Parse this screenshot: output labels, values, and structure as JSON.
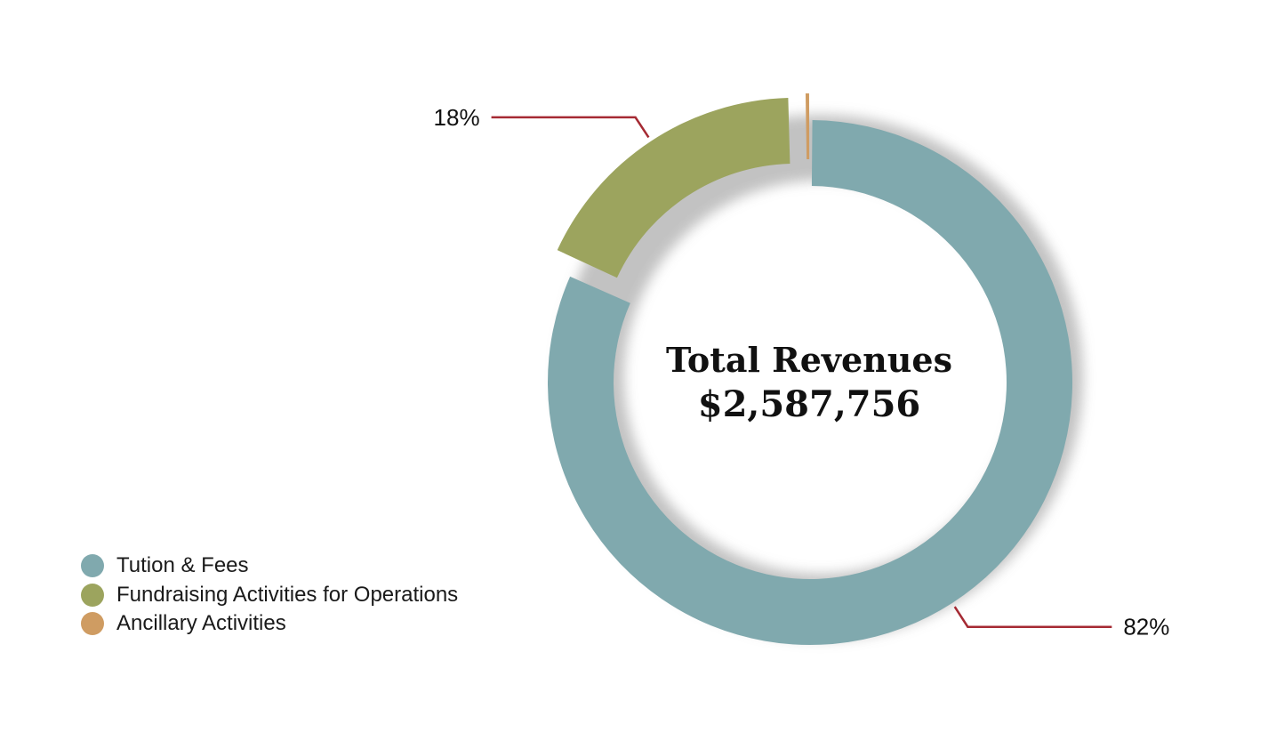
{
  "chart_data": {
    "type": "pie",
    "title": "Total Revenues",
    "total": "$2,587,756",
    "slices": [
      {
        "name": "Tution & Fees",
        "value": 82,
        "label": "82%",
        "color": "#80a9ae"
      },
      {
        "name": "Fundraising Activities for Operations",
        "value": 18,
        "label": "18%",
        "color": "#9ca45e"
      },
      {
        "name": "Ancillary Activities",
        "value": 0.3,
        "label": "",
        "color": "#cf9c62"
      }
    ],
    "legend_position": "bottom-left",
    "leader_line_color": "#a52a33"
  }
}
